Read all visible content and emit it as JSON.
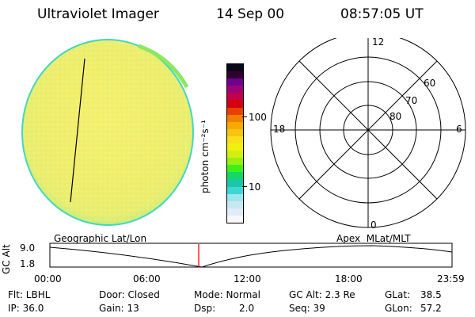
{
  "header": {
    "instrument": "Ultraviolet Imager",
    "date": "14 Sep 00",
    "time": "08:57:05 UT"
  },
  "colorbar": {
    "unit_label": "photon cm⁻²s⁻¹",
    "tick_high": "100",
    "tick_low": "10",
    "colors": [
      "#f8f8f8",
      "#e0ecf8",
      "#c8e8f0",
      "#9ce8ec",
      "#3ed8d4",
      "#18c8a8",
      "#14d864",
      "#3cf01c",
      "#96f012",
      "#d2f00e",
      "#f0f010",
      "#f8e018",
      "#f8c414",
      "#f8a800",
      "#f08000",
      "#e84000",
      "#d40010",
      "#c00048",
      "#a00078",
      "#700090",
      "#300030",
      "#080818"
    ]
  },
  "polar_grid": {
    "mlt_labels": {
      "top": "12",
      "right": "6",
      "bottom": "0",
      "left": "18"
    },
    "lat_labels": [
      "60",
      "70",
      "80"
    ]
  },
  "orbit_plot": {
    "left_label": "Geographic Lat/Lon",
    "right_label": "Apex  MLat/MLT",
    "y_axis_title": "GC Alt",
    "y_ticks": [
      "9.0",
      "1.8"
    ],
    "x_ticks": [
      "00:00",
      "06:00",
      "12:00",
      "18:00",
      "23:59"
    ],
    "marker_color": "#ff0000"
  },
  "status": {
    "flt": "Flt: LBHL",
    "ip": "IP: 36.0",
    "door": "Door: Closed",
    "gain": "Gain: 13",
    "mode": "Mode: Normal",
    "dsp_label": "Dsp:",
    "dsp_value": "2.0",
    "gc_alt": "GC Alt: 2.3 Re",
    "seq": "Seq: 39",
    "glat_label": "GLat:",
    "glat_value": "38.5",
    "glon_label": "GLon:",
    "glon_value": "57.2"
  }
}
